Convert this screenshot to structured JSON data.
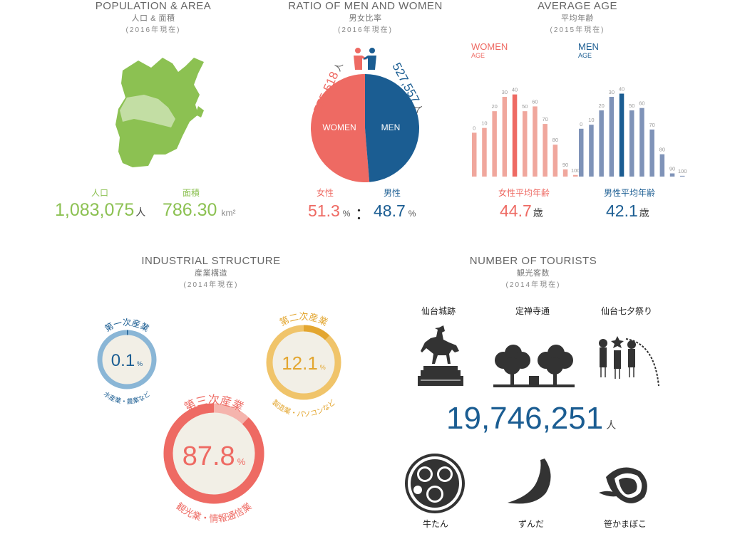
{
  "colors": {
    "green": "#8cc152",
    "women": "#ee6a63",
    "men": "#1b5d92",
    "women_light": "#f0a79d",
    "men_light": "#7f93b8",
    "blue_ring": "#8ab6d6",
    "yellow_ring": "#f0c46a",
    "yellow_seg": "#e3a630",
    "dark": "#3a3a3a"
  },
  "population": {
    "title": "POPULATION & AREA",
    "title_ja": "人口 & 面積",
    "year": "(2016年現在)",
    "pop_label": "人口",
    "pop_value": "1,083,075",
    "pop_unit": "人",
    "area_label": "面積",
    "area_value": "786.30",
    "area_unit": "km²",
    "map_icon": "miyagi-map-icon"
  },
  "ratio": {
    "title": "RATIO OF MEN AND WOMEN",
    "title_ja": "男女比率",
    "year": "(2016年現在)",
    "women_count": "555,518",
    "men_count": "527,557",
    "count_unit": "人",
    "women_label_en": "WOMEN",
    "men_label_en": "MEN",
    "women_label": "女性",
    "men_label": "男性",
    "women_pct": "51.3",
    "men_pct": "48.7",
    "pct_unit": "%",
    "sep": "：",
    "handshake_icon": "handshake-icon"
  },
  "avg_age": {
    "title": "AVERAGE AGE",
    "title_ja": "平均年齢",
    "year": "(2015年現在)",
    "women_legend": "WOMEN",
    "men_legend": "MEN",
    "age_sub": "AGE",
    "women_avg_label": "女性平均年齢",
    "women_avg": "44.7",
    "men_avg_label": "男性平均年齢",
    "men_avg": "42.1",
    "age_unit": "歳"
  },
  "chart_data": [
    {
      "type": "pie",
      "slices": [
        {
          "name": "WOMEN",
          "value": 51.3
        },
        {
          "name": "MEN",
          "value": 48.7
        }
      ]
    },
    {
      "type": "bar",
      "categories": [
        "0",
        "10",
        "20",
        "30",
        "40",
        "50",
        "60",
        "70",
        "80",
        "90",
        "100"
      ],
      "series": [
        {
          "name": "WOMEN",
          "values": [
            0.55,
            0.61,
            0.82,
            1.0,
            1.03,
            0.82,
            0.88,
            0.66,
            0.4,
            0.09,
            0.02
          ],
          "highlight": "40"
        },
        {
          "name": "MEN",
          "values": [
            0.6,
            0.65,
            0.83,
            1.0,
            1.04,
            0.83,
            0.86,
            0.59,
            0.28,
            0.04,
            0.01
          ],
          "highlight": "40"
        }
      ]
    },
    {
      "type": "pie",
      "slices": [
        {
          "name": "第一次産業",
          "value": 0.1
        },
        {
          "name": "第二次産業",
          "value": 12.1
        },
        {
          "name": "第三次産業",
          "value": 87.8
        }
      ]
    }
  ],
  "industry": {
    "title": "INDUSTRIAL STRUCTURE",
    "title_ja": "産業構造",
    "year": "(2014年現在)",
    "primary": {
      "name": "第一次産業",
      "value": "0.1",
      "unit": "%",
      "desc": "水産業・農業など",
      "pct": 0.1
    },
    "secondary": {
      "name": "第二次産業",
      "value": "12.1",
      "unit": "%",
      "desc": "製造業・パソコンなど",
      "pct": 12.1
    },
    "tertiary": {
      "name": "第三次産業",
      "value": "87.8",
      "unit": "%",
      "desc": "観光業・情報通信業",
      "pct": 87.8
    }
  },
  "tourists": {
    "title": "NUMBER OF TOURISTS",
    "title_ja": "観光客数",
    "year": "(2014年現在)",
    "count": "19,746,251",
    "unit": "人",
    "spots": [
      {
        "label": "仙台城跡",
        "icon": "horse-statue-icon"
      },
      {
        "label": "定禅寺通",
        "icon": "zelkova-trees-icon"
      },
      {
        "label": "仙台七夕祭り",
        "icon": "tanabata-icon"
      }
    ],
    "foods": [
      {
        "label": "牛たん",
        "icon": "gyutan-plate-icon"
      },
      {
        "label": "ずんだ",
        "icon": "zunda-bean-icon"
      },
      {
        "label": "笹かまぼこ",
        "icon": "sasakama-icon"
      }
    ]
  }
}
